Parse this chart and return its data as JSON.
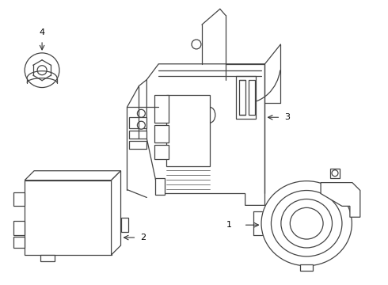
{
  "background_color": "#ffffff",
  "line_color": "#444444",
  "lw": 0.9,
  "arrow_color": "#333333",
  "fig_w": 4.9,
  "fig_h": 3.6,
  "dpi": 100
}
